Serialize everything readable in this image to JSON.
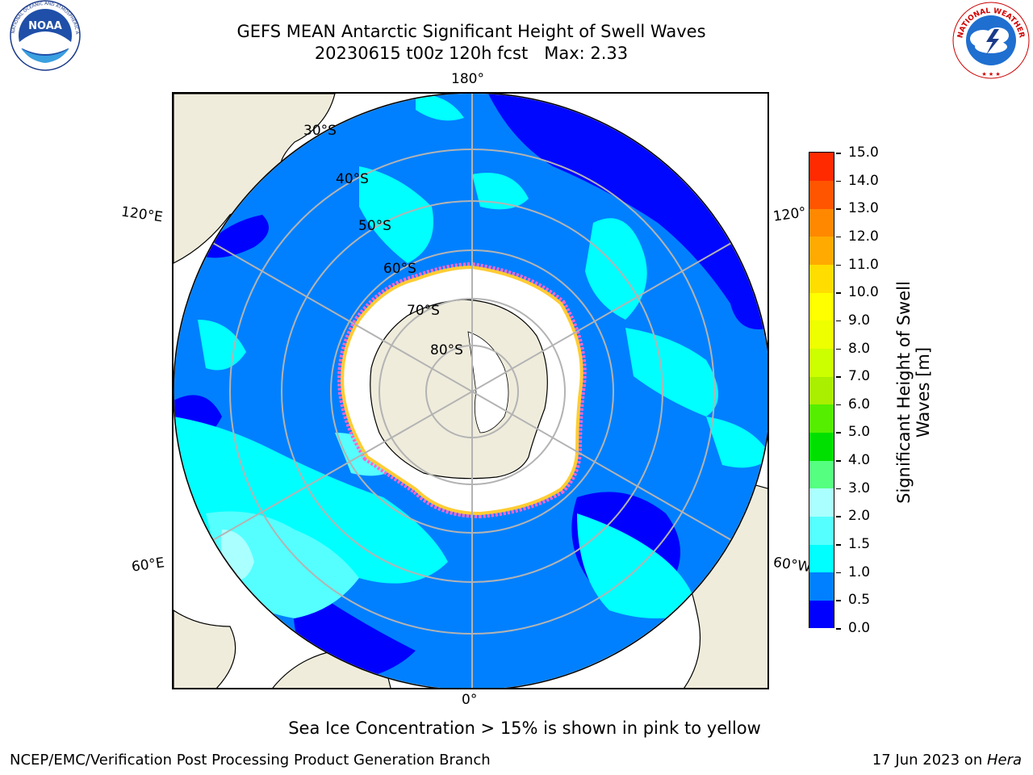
{
  "title": {
    "line1": "GEFS MEAN Antarctic Significant Height of Swell Waves",
    "line2": "20230615 t00z 120h fcst   Max: 2.33"
  },
  "logos": {
    "left": {
      "name": "noaa-logo",
      "text": "NOAA",
      "ring_text": "NATIONAL OCEANIC AND ATMOSPHERIC ADMINISTRATION · U.S. DEPARTMENT OF COMMERCE"
    },
    "right": {
      "name": "nws-logo",
      "ring_text": "NATIONAL WEATHER SERVICE"
    }
  },
  "map": {
    "projection": "south-polar-stereographic",
    "longitude_labels": {
      "top": "180°",
      "bottom": "0°",
      "left_upper": "120°E",
      "left_lower": "60°E",
      "right_upper": "120°",
      "right_lower": "60°W"
    },
    "latitude_labels": [
      "30°S",
      "40°S",
      "50°S",
      "60°S",
      "70°S",
      "80°S"
    ],
    "colors": {
      "land": "#efecdc",
      "sea_ice": "#ffffff",
      "grid": "#b3b3b3",
      "ice_edge": [
        "#ff66cc",
        "#ff9933",
        "#ffcc33"
      ]
    }
  },
  "colorbar": {
    "label_line1": "Significant Height of Swell",
    "label_line2": "Waves [m]",
    "ticks": [
      "0.0",
      "0.5",
      "1.0",
      "1.5",
      "2.0",
      "3.0",
      "4.0",
      "5.0",
      "6.0",
      "7.0",
      "8.0",
      "9.0",
      "10.0",
      "11.0",
      "12.0",
      "13.0",
      "14.0",
      "15.0"
    ],
    "colors": [
      "#0000ff",
      "#0080ff",
      "#00ffff",
      "#55ffff",
      "#aaffff",
      "#55ff80",
      "#00e000",
      "#55ee00",
      "#aaee00",
      "#ccff00",
      "#eeff00",
      "#ffff00",
      "#ffdd00",
      "#ffaa00",
      "#ff8800",
      "#ff5500",
      "#ff2a00",
      "#ff0000"
    ]
  },
  "footnote": "Sea Ice Concentration > 15% is shown in pink to yellow",
  "credit": "NCEP/EMC/Verification Post Processing Product Generation Branch",
  "datestamp": {
    "date": "17 Jun 2023 on ",
    "host": "Hera"
  }
}
